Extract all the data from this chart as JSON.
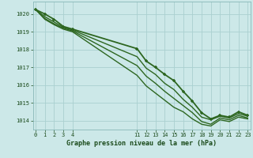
{
  "background_color": "#cce8e8",
  "grid_color": "#aad0d0",
  "line_color": "#2d6620",
  "title": "Graphe pression niveau de la mer (hPa)",
  "ylim": [
    1013.5,
    1020.7
  ],
  "xlim": [
    -0.3,
    23.3
  ],
  "yticks": [
    1014,
    1015,
    1016,
    1017,
    1018,
    1019,
    1020
  ],
  "xticks": [
    0,
    1,
    2,
    3,
    4,
    11,
    12,
    13,
    14,
    15,
    16,
    17,
    18,
    19,
    20,
    21,
    22,
    23
  ],
  "series": [
    {
      "x": [
        0,
        1,
        2,
        3,
        4,
        11,
        12,
        13,
        14,
        15,
        16,
        17,
        18,
        19,
        20,
        21,
        22,
        23
      ],
      "y": [
        1020.25,
        1020.0,
        1019.7,
        1019.3,
        1019.15,
        1018.05,
        1017.35,
        1017.0,
        1016.6,
        1016.25,
        1015.65,
        1015.1,
        1014.45,
        1014.1,
        1014.3,
        1014.2,
        1014.5,
        1014.3
      ],
      "has_markers": true,
      "linewidth": 1.3
    },
    {
      "x": [
        0,
        1,
        2,
        3,
        4,
        11,
        12,
        13,
        14,
        15,
        16,
        17,
        18,
        19,
        20,
        21,
        22,
        23
      ],
      "y": [
        1020.25,
        1019.85,
        1019.55,
        1019.25,
        1019.1,
        1017.6,
        1016.95,
        1016.6,
        1016.1,
        1015.75,
        1015.2,
        1014.75,
        1014.2,
        1014.05,
        1014.25,
        1014.15,
        1014.4,
        1014.25
      ],
      "has_markers": false,
      "linewidth": 1.0
    },
    {
      "x": [
        0,
        1,
        2,
        3,
        4,
        11,
        12,
        13,
        14,
        15,
        16,
        17,
        18,
        19,
        20,
        21,
        22,
        23
      ],
      "y": [
        1020.25,
        1019.75,
        1019.45,
        1019.2,
        1019.05,
        1017.1,
        1016.5,
        1016.1,
        1015.65,
        1015.25,
        1014.85,
        1014.45,
        1013.95,
        1013.8,
        1014.15,
        1014.05,
        1014.3,
        1014.15
      ],
      "has_markers": false,
      "linewidth": 1.0
    },
    {
      "x": [
        0,
        1,
        2,
        3,
        4,
        11,
        12,
        13,
        14,
        15,
        16,
        17,
        18,
        19,
        20,
        21,
        22,
        23
      ],
      "y": [
        1020.25,
        1019.7,
        1019.4,
        1019.15,
        1019.0,
        1016.55,
        1015.95,
        1015.55,
        1015.15,
        1014.75,
        1014.5,
        1014.1,
        1013.8,
        1013.7,
        1014.05,
        1013.95,
        1014.2,
        1014.1
      ],
      "has_markers": false,
      "linewidth": 1.0
    }
  ]
}
